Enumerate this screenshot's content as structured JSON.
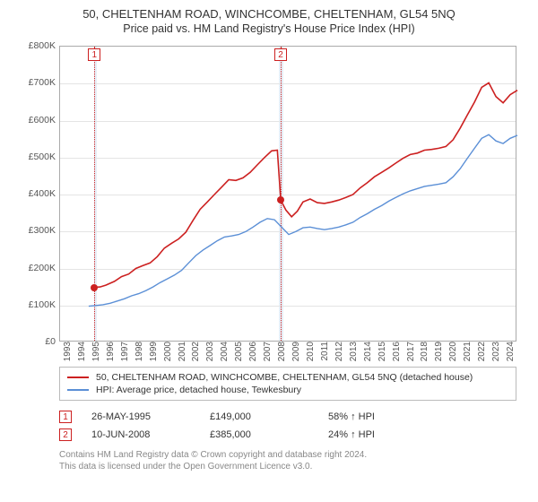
{
  "title": "50, CHELTENHAM ROAD, WINCHCOMBE, CHELTENHAM, GL54 5NQ",
  "subtitle": "Price paid vs. HM Land Registry's House Price Index (HPI)",
  "chart": {
    "type": "line",
    "background_color": "#ffffff",
    "grid_color": "#e4e4e4",
    "axis_color": "#aaaaaa",
    "tick_fontsize": 10.5,
    "x": {
      "min": 1993,
      "max": 2025,
      "ticks": [
        1993,
        1994,
        1995,
        1996,
        1997,
        1998,
        1999,
        2000,
        2001,
        2002,
        2003,
        2004,
        2005,
        2006,
        2007,
        2008,
        2009,
        2010,
        2011,
        2012,
        2013,
        2014,
        2015,
        2016,
        2017,
        2018,
        2019,
        2020,
        2021,
        2022,
        2023,
        2024
      ]
    },
    "y": {
      "min": 0,
      "max": 800000,
      "step": 100000,
      "labels": [
        "£0",
        "£100K",
        "£200K",
        "£300K",
        "£400K",
        "£500K",
        "£600K",
        "£700K",
        "£800K"
      ]
    },
    "shaded": [
      {
        "from": 1995.4,
        "to": 1995.6,
        "color": "#e6eef7"
      },
      {
        "from": 2008.3,
        "to": 2008.6,
        "color": "#e6eef7"
      }
    ],
    "markers": [
      {
        "id": "1",
        "x": 1995.4,
        "y_top": true
      },
      {
        "id": "2",
        "x": 2008.44,
        "y_top": true
      }
    ],
    "points": [
      {
        "x": 1995.4,
        "y": 149000,
        "color": "#cc2020"
      },
      {
        "x": 2008.44,
        "y": 385000,
        "color": "#cc2020"
      }
    ],
    "series": [
      {
        "name": "50, CHELTENHAM ROAD, WINCHCOMBE, CHELTENHAM, GL54 5NQ (detached house)",
        "color": "#cc2020",
        "line_width": 1.6,
        "data": [
          [
            1995.4,
            149000
          ],
          [
            1995.8,
            150000
          ],
          [
            1996.2,
            155000
          ],
          [
            1996.8,
            165000
          ],
          [
            1997.3,
            178000
          ],
          [
            1997.8,
            185000
          ],
          [
            1998.3,
            200000
          ],
          [
            1998.8,
            208000
          ],
          [
            1999.3,
            215000
          ],
          [
            1999.8,
            232000
          ],
          [
            2000.3,
            255000
          ],
          [
            2000.8,
            268000
          ],
          [
            2001.3,
            280000
          ],
          [
            2001.8,
            298000
          ],
          [
            2002.3,
            330000
          ],
          [
            2002.8,
            360000
          ],
          [
            2003.3,
            380000
          ],
          [
            2003.8,
            400000
          ],
          [
            2004.3,
            420000
          ],
          [
            2004.8,
            440000
          ],
          [
            2005.3,
            438000
          ],
          [
            2005.8,
            445000
          ],
          [
            2006.3,
            460000
          ],
          [
            2006.8,
            480000
          ],
          [
            2007.3,
            500000
          ],
          [
            2007.8,
            518000
          ],
          [
            2008.2,
            520000
          ],
          [
            2008.44,
            385000
          ],
          [
            2008.8,
            358000
          ],
          [
            2009.2,
            340000
          ],
          [
            2009.6,
            355000
          ],
          [
            2010.0,
            380000
          ],
          [
            2010.5,
            388000
          ],
          [
            2011.0,
            378000
          ],
          [
            2011.5,
            376000
          ],
          [
            2012.0,
            380000
          ],
          [
            2012.5,
            385000
          ],
          [
            2013.0,
            392000
          ],
          [
            2013.5,
            400000
          ],
          [
            2014.0,
            418000
          ],
          [
            2014.5,
            432000
          ],
          [
            2015.0,
            448000
          ],
          [
            2015.5,
            460000
          ],
          [
            2016.0,
            472000
          ],
          [
            2016.5,
            485000
          ],
          [
            2017.0,
            498000
          ],
          [
            2017.5,
            508000
          ],
          [
            2018.0,
            512000
          ],
          [
            2018.5,
            520000
          ],
          [
            2019.0,
            522000
          ],
          [
            2019.5,
            525000
          ],
          [
            2020.0,
            530000
          ],
          [
            2020.5,
            548000
          ],
          [
            2021.0,
            580000
          ],
          [
            2021.5,
            615000
          ],
          [
            2022.0,
            650000
          ],
          [
            2022.5,
            690000
          ],
          [
            2023.0,
            702000
          ],
          [
            2023.5,
            665000
          ],
          [
            2024.0,
            648000
          ],
          [
            2024.5,
            670000
          ],
          [
            2025.0,
            682000
          ]
        ]
      },
      {
        "name": "HPI: Average price, detached house, Tewkesbury",
        "color": "#5b8fd6",
        "line_width": 1.4,
        "data": [
          [
            1995.0,
            98000
          ],
          [
            1995.5,
            100000
          ],
          [
            1996.0,
            102000
          ],
          [
            1996.5,
            106000
          ],
          [
            1997.0,
            112000
          ],
          [
            1997.5,
            118000
          ],
          [
            1998.0,
            126000
          ],
          [
            1998.5,
            132000
          ],
          [
            1999.0,
            140000
          ],
          [
            1999.5,
            150000
          ],
          [
            2000.0,
            162000
          ],
          [
            2000.5,
            172000
          ],
          [
            2001.0,
            182000
          ],
          [
            2001.5,
            195000
          ],
          [
            2002.0,
            215000
          ],
          [
            2002.5,
            235000
          ],
          [
            2003.0,
            250000
          ],
          [
            2003.5,
            262000
          ],
          [
            2004.0,
            275000
          ],
          [
            2004.5,
            285000
          ],
          [
            2005.0,
            288000
          ],
          [
            2005.5,
            292000
          ],
          [
            2006.0,
            300000
          ],
          [
            2006.5,
            312000
          ],
          [
            2007.0,
            325000
          ],
          [
            2007.5,
            335000
          ],
          [
            2008.0,
            332000
          ],
          [
            2008.5,
            312000
          ],
          [
            2009.0,
            292000
          ],
          [
            2009.5,
            300000
          ],
          [
            2010.0,
            310000
          ],
          [
            2010.5,
            312000
          ],
          [
            2011.0,
            308000
          ],
          [
            2011.5,
            305000
          ],
          [
            2012.0,
            308000
          ],
          [
            2012.5,
            312000
          ],
          [
            2013.0,
            318000
          ],
          [
            2013.5,
            325000
          ],
          [
            2014.0,
            338000
          ],
          [
            2014.5,
            348000
          ],
          [
            2015.0,
            360000
          ],
          [
            2015.5,
            370000
          ],
          [
            2016.0,
            382000
          ],
          [
            2016.5,
            392000
          ],
          [
            2017.0,
            402000
          ],
          [
            2017.5,
            410000
          ],
          [
            2018.0,
            416000
          ],
          [
            2018.5,
            422000
          ],
          [
            2019.0,
            425000
          ],
          [
            2019.5,
            428000
          ],
          [
            2020.0,
            432000
          ],
          [
            2020.5,
            448000
          ],
          [
            2021.0,
            470000
          ],
          [
            2021.5,
            498000
          ],
          [
            2022.0,
            525000
          ],
          [
            2022.5,
            552000
          ],
          [
            2023.0,
            562000
          ],
          [
            2023.5,
            545000
          ],
          [
            2024.0,
            538000
          ],
          [
            2024.5,
            552000
          ],
          [
            2025.0,
            560000
          ]
        ]
      }
    ]
  },
  "legend": {
    "items": [
      {
        "label": "50, CHELTENHAM ROAD, WINCHCOMBE, CHELTENHAM, GL54 5NQ (detached house)",
        "color": "#cc2020"
      },
      {
        "label": "HPI: Average price, detached house, Tewkesbury",
        "color": "#5b8fd6"
      }
    ]
  },
  "events": [
    {
      "id": "1",
      "date": "26-MAY-1995",
      "price": "£149,000",
      "pct": "58%",
      "arrow": "↑",
      "suffix": "HPI"
    },
    {
      "id": "2",
      "date": "10-JUN-2008",
      "price": "£385,000",
      "pct": "24%",
      "arrow": "↑",
      "suffix": "HPI"
    }
  ],
  "footer": {
    "line1": "Contains HM Land Registry data © Crown copyright and database right 2024.",
    "line2": "This data is licensed under the Open Government Licence v3.0."
  }
}
